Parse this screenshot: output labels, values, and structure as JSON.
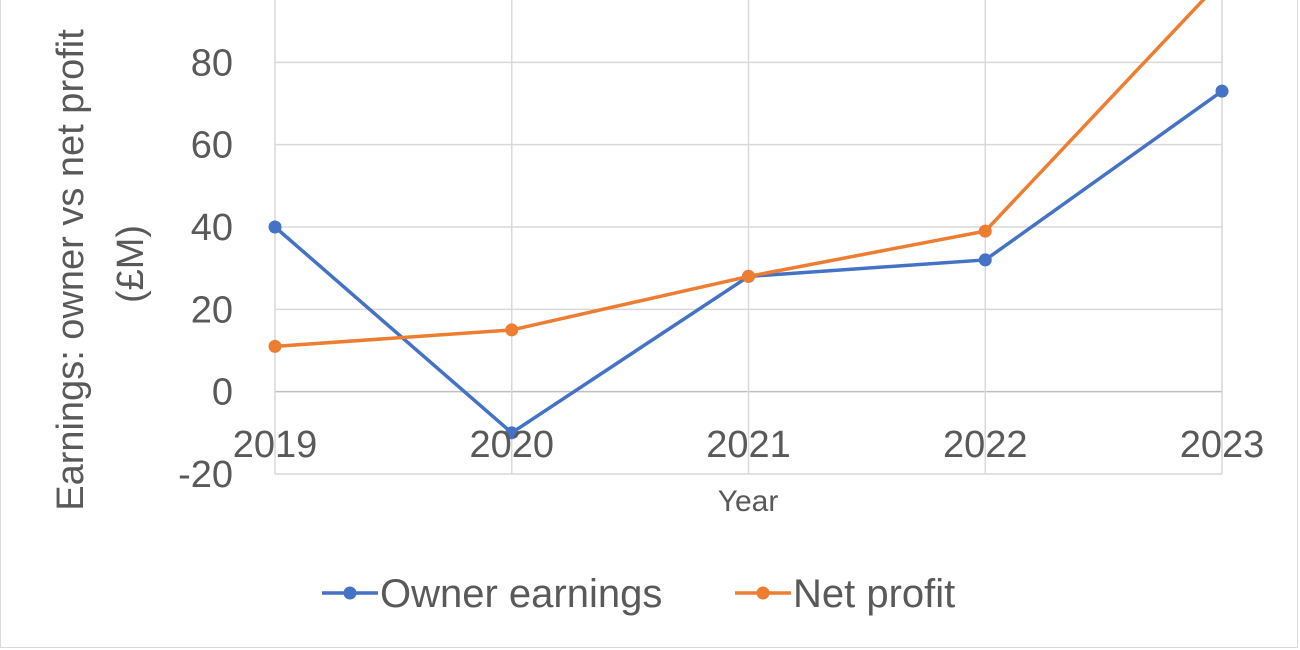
{
  "chart_data": {
    "type": "line",
    "x": [
      "2019",
      "2020",
      "2021",
      "2022",
      "2023"
    ],
    "series": [
      {
        "name": "Owner earnings",
        "values": [
          40,
          -10,
          28,
          32,
          73
        ],
        "color": "#4472C4"
      },
      {
        "name": "Net profit",
        "values": [
          11,
          15,
          28,
          39,
          100
        ],
        "color": "#ED7D31"
      }
    ],
    "xlabel": "Year",
    "ylabel_line1": "Earnings: owner vs net profit",
    "ylabel_line2": "(£M)",
    "ylim": [
      -20,
      100
    ],
    "yticks": [
      -20,
      0,
      20,
      40,
      60,
      80
    ],
    "grid": true,
    "legend": "bottom"
  }
}
